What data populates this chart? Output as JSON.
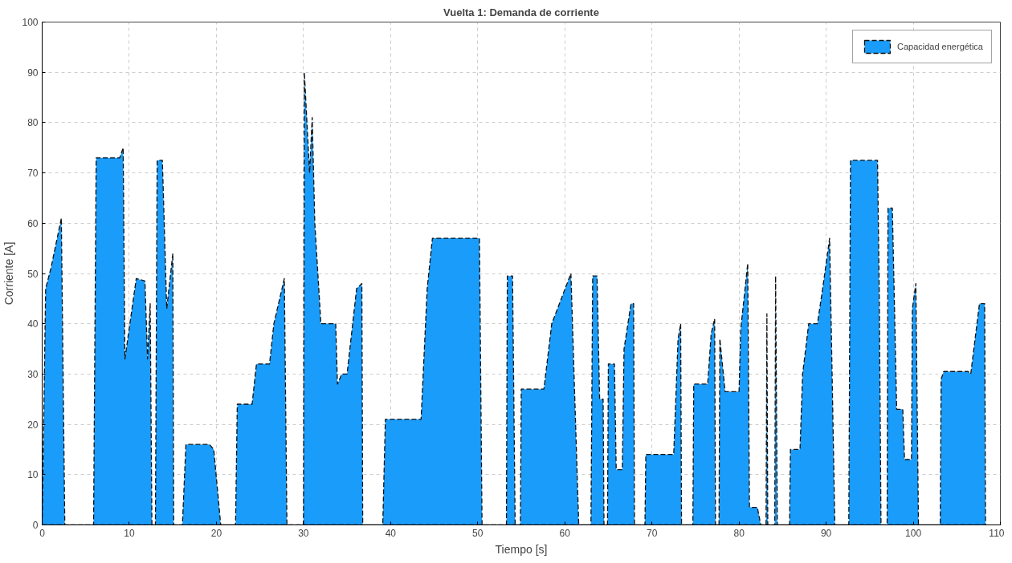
{
  "chart_data": {
    "type": "area",
    "title": "Vuelta 1: Demanda de corriente",
    "xlabel": "Tiempo [s]",
    "ylabel": "Corriente [A]",
    "xlim": [
      0,
      110
    ],
    "ylim": [
      0,
      100
    ],
    "xticks": [
      0,
      10,
      20,
      30,
      40,
      50,
      60,
      70,
      80,
      90,
      100,
      110
    ],
    "yticks": [
      0,
      10,
      20,
      30,
      40,
      50,
      60,
      70,
      80,
      90,
      100
    ],
    "grid": true,
    "legend": "top right",
    "line_style": "dashed",
    "series": [
      {
        "name": "Capacidad energética",
        "color": "#1a9cfa",
        "x": [
          0,
          0.4,
          1,
          2.2,
          2.6,
          5.9,
          6.2,
          8.9,
          9.3,
          9.5,
          10.8,
          11.8,
          12.1,
          12.4,
          12.6,
          13,
          13.2,
          13.8,
          14.3,
          15.0,
          15.1,
          16.1,
          16.5,
          19.2,
          19.7,
          20.5,
          22.2,
          22.4,
          24.1,
          24.6,
          26.1,
          26.6,
          27.8,
          28.1,
          30,
          30.1,
          30.7,
          31.0,
          31.3,
          32.0,
          33.7,
          33.9,
          34.4,
          35.0,
          36.1,
          36.7,
          36.8,
          39.1,
          39.4,
          43.5,
          44.2,
          44.8,
          50.2,
          50.5,
          53.3,
          53.4,
          54.0,
          54.3,
          54.9,
          55.0,
          57.6,
          58.5,
          60.7,
          61.6,
          63.0,
          63.2,
          63.7,
          64.0,
          64.4,
          64.5,
          64.9,
          65.0,
          65.7,
          65.9,
          66.6,
          66.8,
          67.6,
          67.9,
          68.0,
          69.2,
          69.3,
          72.5,
          73.0,
          73.3,
          73.4,
          74.7,
          74.8,
          76.4,
          76.8,
          77.2,
          77.3,
          77.7,
          77.8,
          78.4,
          80.0,
          80.2,
          81.0,
          81.2,
          82.1,
          82.5,
          83.1,
          83.2,
          83.3,
          84.1,
          84.2,
          84.4,
          85.8,
          85.9,
          87.0,
          87.3,
          88.0,
          89.0,
          89.6,
          90.4,
          91.0,
          92.6,
          92.8,
          95.9,
          96.1,
          96.3,
          97.0,
          97.1,
          97.6,
          98.1,
          98.8,
          99.0,
          99.8,
          99.9,
          100.3,
          100.6,
          103.1,
          103.2,
          103.5,
          106.3,
          106.6,
          107.6,
          108.2,
          108.3
        ],
        "values": [
          0,
          47,
          51,
          61,
          0,
          0,
          73,
          73,
          75,
          33,
          49,
          48.5,
          33,
          44,
          0,
          0,
          72.5,
          72.5,
          43,
          54,
          0,
          0,
          16,
          16,
          15,
          0,
          0,
          24,
          24,
          32,
          32,
          40,
          49,
          0,
          0,
          90,
          70,
          81,
          60,
          40,
          40,
          28,
          30,
          30,
          47,
          48,
          0,
          0,
          21,
          21,
          47,
          57,
          57,
          0,
          0,
          49.5,
          49.5,
          0,
          0,
          27,
          27,
          40,
          50,
          0,
          0,
          49.5,
          49.5,
          25,
          25,
          0,
          0,
          32,
          32,
          11,
          11,
          35,
          44,
          44,
          0,
          0,
          14,
          14,
          37,
          40,
          0,
          0,
          28,
          28,
          38,
          41,
          0,
          0,
          37,
          26.5,
          26.5,
          39,
          52,
          3.5,
          3.5,
          0,
          0,
          42,
          0,
          0,
          49.5,
          0,
          0,
          15,
          15,
          30,
          40,
          40,
          47,
          57,
          0,
          0,
          72.5,
          72.5,
          46,
          0,
          0,
          63,
          63,
          23,
          23,
          13,
          13,
          43,
          48,
          0,
          0,
          29,
          30.5,
          30.5,
          30,
          44,
          44,
          0
        ]
      }
    ]
  }
}
